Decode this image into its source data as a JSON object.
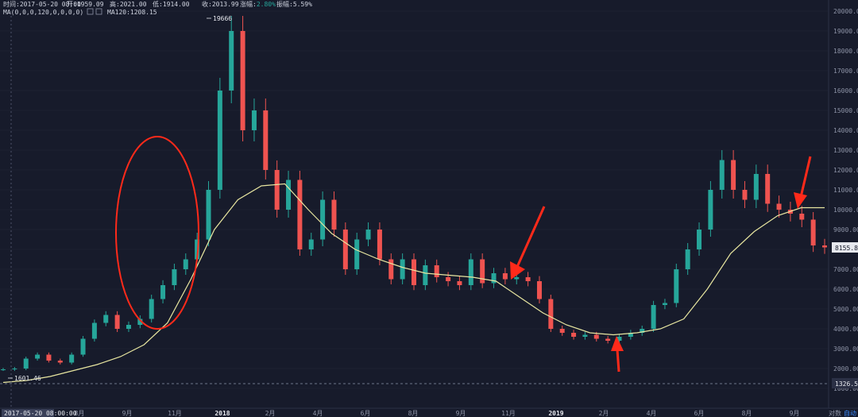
{
  "info_bar": {
    "time_label": "时间:",
    "time_value": "2017-05-20 08:00",
    "open_label": "开:",
    "open_value": "1959.09",
    "high_label": "高:",
    "high_value": "2021.00",
    "low_label": "低:",
    "low_value": "1914.00",
    "close_label": "收:",
    "close_value": "2013.99",
    "change_label": "涨幅:",
    "change_value": "2.80%",
    "amplitude_label": "振幅:",
    "amplitude_value": "5.59%"
  },
  "ma_bar": {
    "settings_label": "MA(0,0,0,120,0,0,0,0)",
    "ma120_label": "MA120:",
    "ma120_value": "1208.15"
  },
  "colors": {
    "background": "#171b2b",
    "up": "#26a69a",
    "down": "#ef5350",
    "ma_line": "#e8e6a0",
    "annotation": "#ff2a1a",
    "grid": "#252a3b"
  },
  "annotations": {
    "peak_label": "19666",
    "low_label": "1601.46",
    "current_price": "8155.83",
    "dashed_level": "1326.53",
    "cursor_date": "2017-05-20 08:00:00"
  },
  "footer": {
    "log_label": "对数",
    "auto_label": "自动"
  },
  "chart_data": {
    "type": "candlestick",
    "scale": "log",
    "y_ticks": [
      "20000.00",
      "19000.00",
      "18000.00",
      "17000.00",
      "16000.00",
      "15000.00",
      "14000.00",
      "13000.00",
      "12000.00",
      "11000.00",
      "10000.00",
      "9000.00",
      "8000.00",
      "7000.00",
      "6000.00",
      "5000.00",
      "4000.00",
      "3000.00",
      "2000.00",
      "1000.00"
    ],
    "x_ticks": [
      {
        "label": "8月",
        "year": false
      },
      {
        "label": "9月",
        "year": false
      },
      {
        "label": "11月",
        "year": false
      },
      {
        "label": "2018",
        "year": true
      },
      {
        "label": "2月",
        "year": false
      },
      {
        "label": "4月",
        "year": false
      },
      {
        "label": "6月",
        "year": false
      },
      {
        "label": "8月",
        "year": false
      },
      {
        "label": "9月",
        "year": false
      },
      {
        "label": "11月",
        "year": false
      },
      {
        "label": "2019",
        "year": true
      },
      {
        "label": "2月",
        "year": false
      },
      {
        "label": "4月",
        "year": false
      },
      {
        "label": "6月",
        "year": false
      },
      {
        "label": "8月",
        "year": false
      },
      {
        "label": "9月",
        "year": false
      }
    ],
    "close_trend": [
      1959,
      2000,
      2500,
      2700,
      2400,
      2300,
      2700,
      3500,
      4300,
      4700,
      4000,
      4200,
      4500,
      5500,
      6200,
      7000,
      7500,
      8500,
      11000,
      16000,
      19000,
      14000,
      15000,
      12000,
      10000,
      11500,
      8000,
      8500,
      10500,
      9000,
      7000,
      8500,
      9000,
      7500,
      6500,
      7500,
      6200,
      7200,
      6600,
      6400,
      6200,
      7500,
      6300,
      6800,
      6500,
      6600,
      6400,
      5500,
      4000,
      3800,
      3600,
      3700,
      3500,
      3400,
      3600,
      3800,
      4000,
      5200,
      5300,
      7000,
      8000,
      9000,
      11000,
      12500,
      11000,
      10500,
      11800,
      10300,
      10000,
      9800,
      9500,
      8200,
      8100
    ],
    "ma120_trend": [
      1300,
      1400,
      1600,
      1900,
      2200,
      2600,
      3200,
      4300,
      6500,
      9000,
      10500,
      11200,
      11300,
      10000,
      8800,
      8000,
      7500,
      7100,
      6800,
      6700,
      6600,
      6400,
      5600,
      4800,
      4200,
      3800,
      3700,
      3800,
      4000,
      4500,
      6000,
      7800,
      8900,
      9700,
      10100,
      10100
    ]
  }
}
